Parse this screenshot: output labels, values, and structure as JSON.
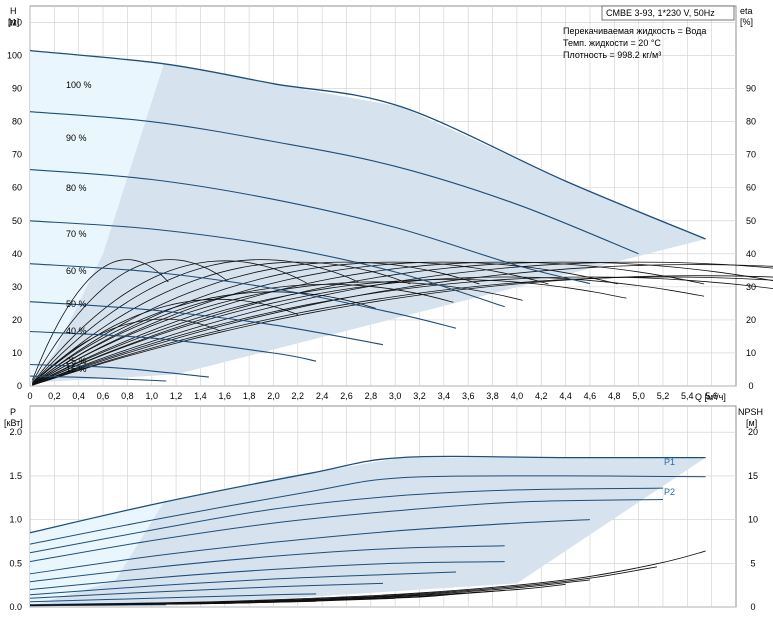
{
  "chart_data": [
    {
      "type": "line",
      "box_title": "CMBE 3-93, 1*230 V, 50Hz",
      "info_lines": [
        "Перекачиваемая жидкость = Вода",
        "Темп. жидкости = 20 °C",
        "Плотность = 998.2 кг/м³"
      ],
      "ylabel_left": [
        "H",
        "[м]"
      ],
      "ylabel_right": [
        "eta",
        "[%]"
      ],
      "xlabel": "Q [м³/ч]",
      "xlim": [
        0,
        5.8
      ],
      "ylim": [
        0,
        115
      ],
      "x_ticks": [
        "0",
        "0,2",
        "0,4",
        "0,6",
        "0,8",
        "1,0",
        "1,2",
        "1,4",
        "1,6",
        "1,8",
        "2,0",
        "2,2",
        "2,4",
        "2,6",
        "2,8",
        "3,0",
        "3,2",
        "3,4",
        "3,6",
        "3,8",
        "4,0",
        "4,2",
        "4,4",
        "4,6",
        "4,8",
        "5,0",
        "5,2",
        "5,4",
        "5,6"
      ],
      "y_ticks_left": [
        "0",
        "10",
        "20",
        "30",
        "40",
        "50",
        "60",
        "70",
        "80",
        "90",
        "100",
        "110"
      ],
      "y_ticks_right": [
        "0",
        "10",
        "20",
        "30",
        "40",
        "50",
        "60",
        "70",
        "80",
        "90"
      ],
      "envelope": [
        [
          0,
          101.5
        ],
        [
          1.1,
          97.5
        ],
        [
          2.0,
          91.5
        ],
        [
          3.05,
          84.5
        ],
        [
          4.4,
          62
        ],
        [
          5.55,
          44.5
        ],
        [
          1.2,
          3.5
        ],
        [
          0,
          1
        ]
      ],
      "series": [
        {
          "name": "100 %",
          "q": [
            0,
            1.1,
            2.0,
            3.05,
            4.4,
            5.55
          ],
          "h": [
            101.5,
            97.5,
            91.5,
            84.5,
            62,
            44.5
          ]
        },
        {
          "name": "90 %",
          "q": [
            0,
            1.0,
            2.0,
            3.0,
            4.0,
            5.0
          ],
          "h": [
            83,
            80,
            74,
            66.5,
            55,
            40
          ]
        },
        {
          "name": "80 %",
          "q": [
            0,
            1.0,
            2.0,
            3.0,
            4.0,
            4.6
          ],
          "h": [
            65.5,
            62.5,
            56.5,
            48,
            36.5,
            31
          ]
        },
        {
          "name": "70 %",
          "q": [
            0,
            1.0,
            2.0,
            3.0,
            3.9
          ],
          "h": [
            50,
            47.5,
            42.5,
            34.5,
            24
          ]
        },
        {
          "name": "60 %",
          "q": [
            0,
            1.0,
            2.0,
            3.0,
            3.5
          ],
          "h": [
            37,
            34.5,
            29.5,
            22,
            17.5
          ]
        },
        {
          "name": "50 %",
          "q": [
            0,
            1.0,
            2.0,
            2.9
          ],
          "h": [
            25.5,
            23,
            18.5,
            12.5
          ]
        },
        {
          "name": "40 %",
          "q": [
            0,
            1.0,
            2.0,
            2.35
          ],
          "h": [
            16.5,
            14.5,
            10,
            7.5
          ]
        },
        {
          "name": "25 %",
          "q": [
            0,
            0.7,
            1.47
          ],
          "h": [
            6.5,
            5.5,
            2.7
          ]
        },
        {
          "name": "15 %",
          "q": [
            0,
            0.5,
            1.12
          ],
          "h": [
            3,
            2.5,
            1.5
          ]
        }
      ],
      "eta_curves": [
        {
          "qmax": 0.8,
          "emax": 51
        },
        {
          "qmax": 1.15,
          "emax": 51
        },
        {
          "qmax": 1.6,
          "emax": 50.5
        },
        {
          "qmax": 1.9,
          "emax": 51
        },
        {
          "qmax": 2.2,
          "emax": 50
        },
        {
          "qmax": 2.6,
          "emax": 50
        },
        {
          "qmax": 3.0,
          "emax": 50
        },
        {
          "qmax": 3.4,
          "emax": 50
        },
        {
          "qmax": 3.9,
          "emax": 50
        },
        {
          "qmax": 4.4,
          "emax": 50
        },
        {
          "qmax": 5.0,
          "emax": 50
        },
        {
          "qmax": 5.45,
          "emax": 49
        },
        {
          "qmax": 2.45,
          "emax": 41
        },
        {
          "qmax": 2.85,
          "emax": 42
        },
        {
          "qmax": 3.45,
          "emax": 43
        },
        {
          "qmax": 3.9,
          "emax": 44
        },
        {
          "qmax": 4.6,
          "emax": 44
        },
        {
          "qmax": 5.2,
          "emax": 44
        },
        {
          "qmax": 5.5,
          "emax": 44.5
        },
        {
          "qmax": 1.55,
          "emax": 35
        },
        {
          "qmax": 1.1,
          "emax": 27
        },
        {
          "qmax": 2.0,
          "emax": 38
        }
      ]
    },
    {
      "type": "line",
      "ylabel_left": [
        "P",
        "[кВт]"
      ],
      "ylabel_right": [
        "NPSH",
        "[м]"
      ],
      "xlim": [
        0,
        5.8
      ],
      "ylim": [
        0,
        2.3
      ],
      "y_ticks_left": [
        "0.0",
        "0.5",
        "1.0",
        "1.5",
        "2.0"
      ],
      "y_ticks_right": [
        "0",
        "5",
        "10",
        "15",
        "20"
      ],
      "labels": [
        "P1",
        "P2"
      ],
      "power_curves": [
        {
          "q": [
            0,
            1.1,
            2.3,
            3.05,
            4.4,
            5.55
          ],
          "p": [
            0.85,
            1.2,
            1.53,
            1.71,
            1.71,
            1.71
          ]
        },
        {
          "q": [
            0,
            1.1,
            2.3,
            3.05,
            4.4,
            5.55
          ],
          "p": [
            0.72,
            1.02,
            1.32,
            1.48,
            1.5,
            1.49
          ]
        },
        {
          "q": [
            0,
            1.0,
            2.0,
            3.0,
            4.0,
            5.2
          ],
          "p": [
            0.62,
            0.88,
            1.12,
            1.27,
            1.34,
            1.36
          ]
        },
        {
          "q": [
            0,
            1.0,
            2.0,
            3.0,
            4.0,
            5.2
          ],
          "p": [
            0.52,
            0.76,
            0.96,
            1.1,
            1.2,
            1.23
          ]
        },
        {
          "q": [
            0,
            1.0,
            2.0,
            3.0,
            4.0,
            4.6
          ],
          "p": [
            0.38,
            0.58,
            0.74,
            0.87,
            0.96,
            1.0
          ]
        },
        {
          "q": [
            0,
            1.0,
            2.0,
            3.0,
            3.9
          ],
          "p": [
            0.29,
            0.45,
            0.58,
            0.67,
            0.7
          ]
        },
        {
          "q": [
            0,
            1.0,
            2.0,
            3.0,
            3.9
          ],
          "p": [
            0.2,
            0.33,
            0.43,
            0.5,
            0.52
          ]
        },
        {
          "q": [
            0,
            1.0,
            2.0,
            2.9,
            3.5
          ],
          "p": [
            0.14,
            0.24,
            0.32,
            0.37,
            0.4
          ]
        },
        {
          "q": [
            0,
            1.0,
            2.0,
            2.9
          ],
          "p": [
            0.1,
            0.17,
            0.23,
            0.27
          ]
        },
        {
          "q": [
            0,
            1.0,
            2.0,
            2.35
          ],
          "p": [
            0.06,
            0.1,
            0.14,
            0.15
          ]
        },
        {
          "q": [
            0,
            0.7,
            1.47
          ],
          "p": [
            0.025,
            0.04,
            0.05
          ]
        },
        {
          "q": [
            0,
            0.5,
            1.12
          ],
          "p": [
            0.015,
            0.02,
            0.025
          ]
        }
      ],
      "npsh_curves": [
        {
          "q": [
            0,
            1.5,
            2.5,
            3.2,
            4.0,
            4.6,
            5.2,
            5.55
          ],
          "n": [
            0.2,
            0.6,
            1.1,
            1.6,
            2.5,
            3.5,
            5.1,
            6.4
          ]
        },
        {
          "q": [
            0,
            1.5,
            2.5,
            3.2,
            4.0,
            4.6,
            5.15
          ],
          "n": [
            0.2,
            0.55,
            1.0,
            1.5,
            2.35,
            3.3,
            4.6
          ]
        },
        {
          "q": [
            0,
            1.5,
            2.5,
            3.2,
            4.0,
            4.6
          ],
          "n": [
            0.2,
            0.5,
            0.95,
            1.4,
            2.2,
            3.1
          ]
        },
        {
          "q": [
            0,
            1.5,
            2.5,
            3.2,
            4.0,
            4.4
          ],
          "n": [
            0.2,
            0.45,
            0.9,
            1.3,
            2.0,
            2.6
          ]
        },
        {
          "q": [
            0,
            1.5,
            2.5,
            3.2,
            3.9
          ],
          "n": [
            0.2,
            0.45,
            0.85,
            1.2,
            1.9
          ]
        },
        {
          "q": [
            0,
            1.5,
            2.5,
            3.2,
            3.5
          ],
          "n": [
            0.2,
            0.4,
            0.8,
            1.15,
            1.5
          ]
        },
        {
          "q": [
            0,
            1.5,
            2.5,
            3.0
          ],
          "n": [
            0.2,
            0.4,
            0.75,
            1.0
          ]
        },
        {
          "q": [
            0,
            1.5,
            2.35
          ],
          "n": [
            0.2,
            0.4,
            0.65
          ]
        }
      ]
    }
  ]
}
